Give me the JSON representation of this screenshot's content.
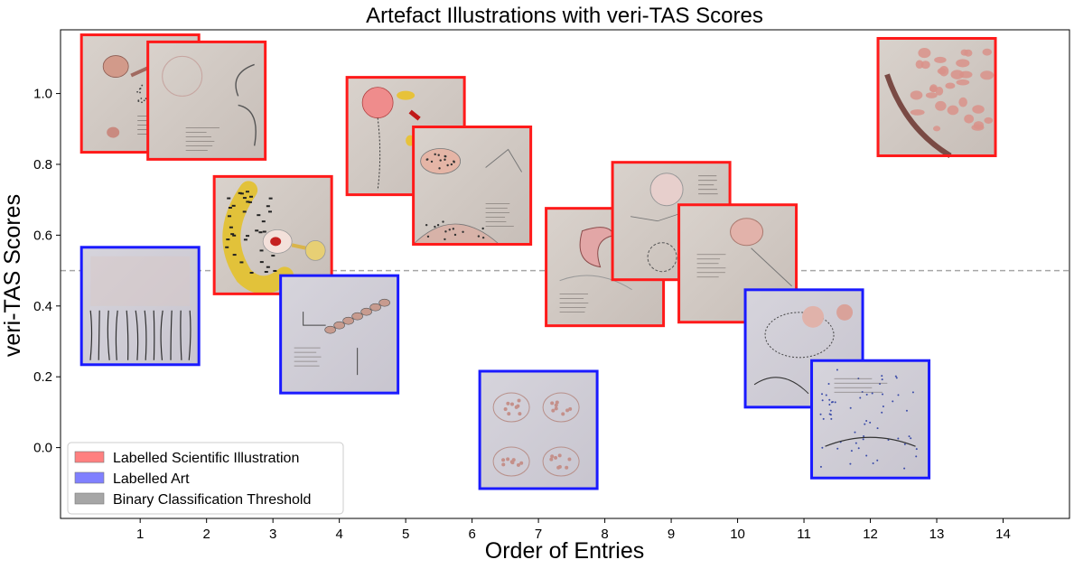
{
  "chart_data": {
    "type": "scatter",
    "title": "Artefact Illustrations with veri-TAS Scores",
    "xlabel": "Order of Entries",
    "ylabel": "veri-TAS Scores",
    "xlim": [
      -0.2,
      15.0
    ],
    "ylim": [
      -0.2,
      1.18
    ],
    "xticks": [
      "1",
      "2",
      "3",
      "4",
      "5",
      "6",
      "7",
      "8",
      "9",
      "10",
      "11",
      "12",
      "13",
      "14"
    ],
    "yticks": [
      "0.0",
      "0.2",
      "0.4",
      "0.6",
      "0.8",
      "1.0"
    ],
    "threshold": 0.5,
    "grid": false,
    "legend_position": "bottom-left",
    "legend": [
      {
        "label": "Labelled Scientific Illustration",
        "color": "#ff8080"
      },
      {
        "label": "Labelled Art",
        "color": "#8080ff"
      },
      {
        "label": "Binary Classification Threshold",
        "color": "#a6a6a6"
      }
    ],
    "colors": {
      "scientific": "#ff1a1a",
      "art": "#1a1aff",
      "threshold": "#a6a6a6"
    },
    "points": [
      {
        "x": 1,
        "y": 1.0,
        "label": "scientific",
        "thumb": "sketch-cells"
      },
      {
        "x": 1,
        "y": 0.4,
        "label": "art",
        "thumb": "tree-roots"
      },
      {
        "x": 2,
        "y": 0.98,
        "label": "scientific",
        "thumb": "circle-curve"
      },
      {
        "x": 3,
        "y": 0.6,
        "label": "scientific",
        "thumb": "yellow-worm"
      },
      {
        "x": 4,
        "y": 0.32,
        "label": "art",
        "thumb": "cell-chain"
      },
      {
        "x": 5,
        "y": 0.88,
        "label": "scientific",
        "thumb": "red-bloom"
      },
      {
        "x": 6,
        "y": 0.74,
        "label": "scientific",
        "thumb": "cell-grid"
      },
      {
        "x": 7,
        "y": 0.05,
        "label": "art",
        "thumb": "tissue-rings"
      },
      {
        "x": 8,
        "y": 0.51,
        "label": "scientific",
        "thumb": "kidney"
      },
      {
        "x": 9,
        "y": 0.64,
        "label": "scientific",
        "thumb": "circle-detail"
      },
      {
        "x": 10,
        "y": 0.52,
        "label": "scientific",
        "thumb": "round-tissue"
      },
      {
        "x": 11,
        "y": 0.28,
        "label": "art",
        "thumb": "round-ring"
      },
      {
        "x": 12,
        "y": 0.08,
        "label": "art",
        "thumb": "blue-dots"
      },
      {
        "x": 13,
        "y": 0.99,
        "label": "scientific",
        "thumb": "dense-spots"
      }
    ]
  }
}
